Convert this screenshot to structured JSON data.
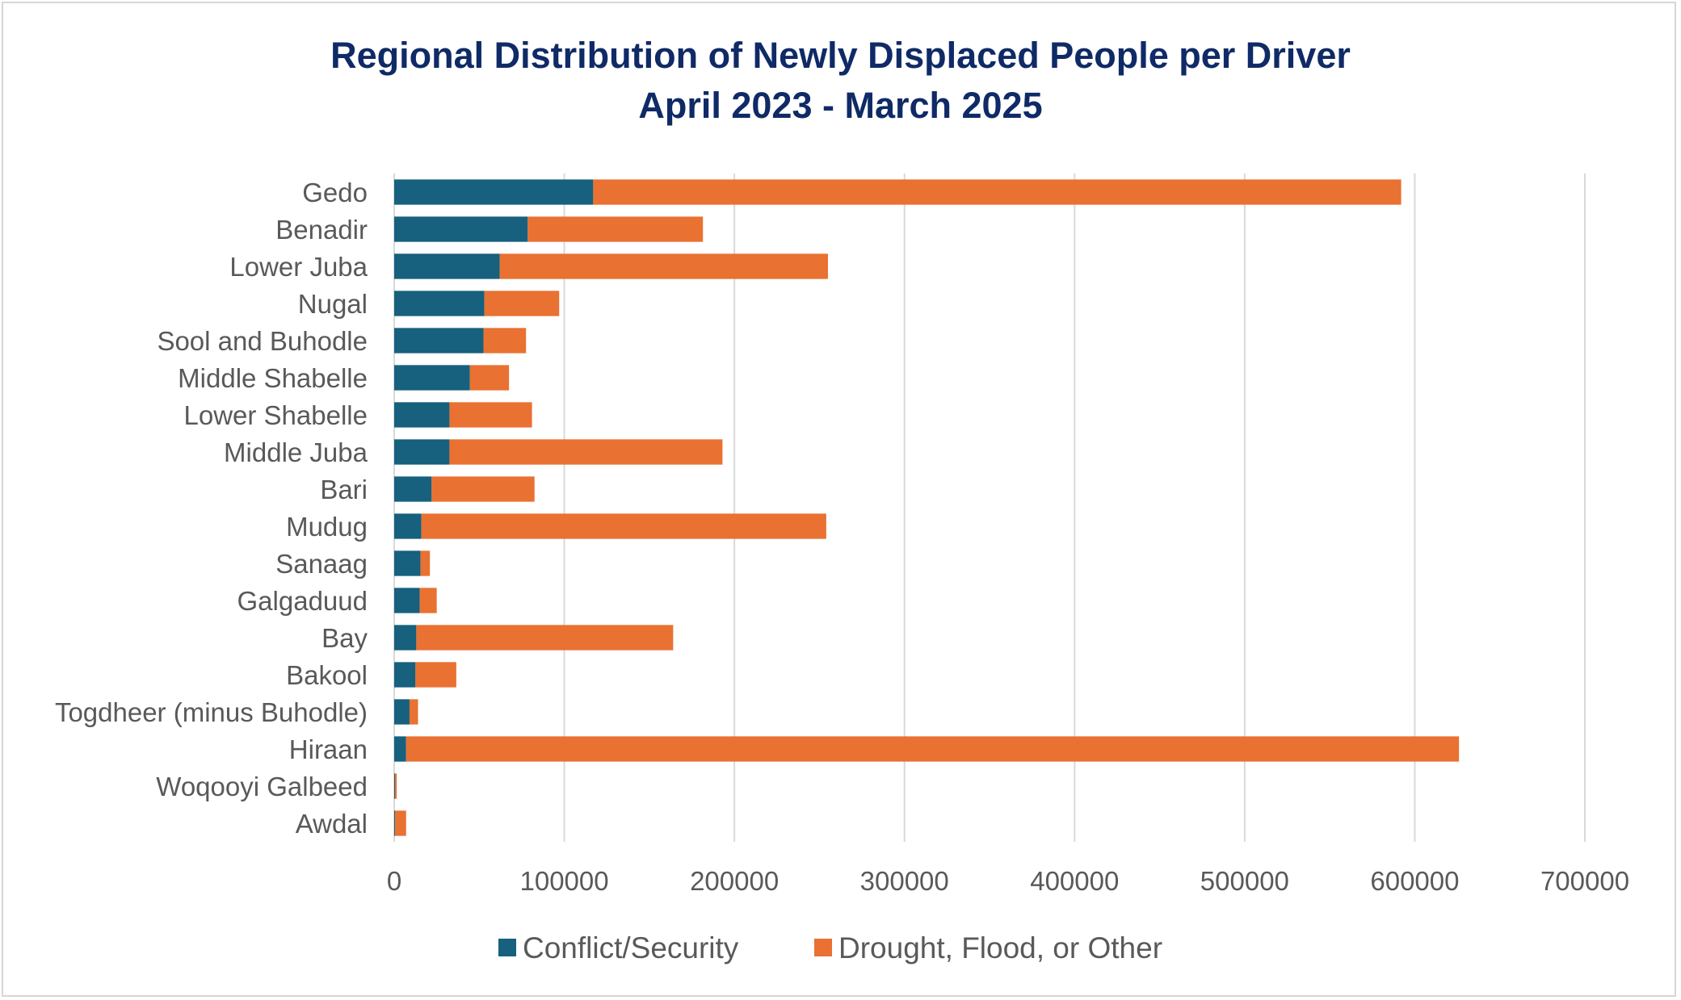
{
  "chart_data": {
    "type": "bar",
    "orientation": "horizontal",
    "stacked": true,
    "title": "Regional Distribution of Newly Displaced People per Driver",
    "subtitle": "April 2023 - March 2025",
    "categories": [
      "Gedo",
      "Benadir",
      "Lower Juba",
      "Nugal",
      "Sool and Buhodle",
      "Middle Shabelle",
      "Lower Shabelle",
      "Middle Juba",
      "Bari",
      "Mudug",
      "Sanaag",
      "Galgaduud",
      "Bay",
      "Bakool",
      "Togdheer (minus Buhodle)",
      "Hiraan",
      "Woqooyi Galbeed",
      "Awdal"
    ],
    "series": [
      {
        "name": "Conflict/Security",
        "color": "#17607e",
        "values": [
          117000,
          78500,
          62000,
          53000,
          52500,
          44500,
          32500,
          32500,
          22000,
          16000,
          15500,
          15000,
          13000,
          12500,
          9000,
          7000,
          500,
          500
        ]
      },
      {
        "name": "Drought, Flood, or Other",
        "color": "#e97132",
        "values": [
          475000,
          103000,
          193000,
          44000,
          25000,
          23000,
          48500,
          160500,
          60500,
          238000,
          5500,
          10000,
          151000,
          24000,
          5000,
          619000,
          1000,
          6500
        ]
      }
    ],
    "xlim": [
      0,
      700000
    ],
    "xticks": [
      "0",
      "100000",
      "200000",
      "300000",
      "400000",
      "500000",
      "600000",
      "700000"
    ],
    "grid": true,
    "legend": "bottom"
  }
}
